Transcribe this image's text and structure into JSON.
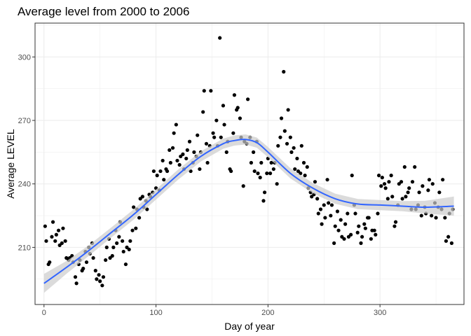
{
  "chart_data": {
    "type": "scatter",
    "title": "Average level from 2000 to 2006",
    "xlabel": "Day of year",
    "ylabel": "Average LEVEL",
    "xlim": [
      -8,
      375
    ],
    "ylim": [
      183,
      316
    ],
    "xticks": [
      0,
      100,
      200,
      300
    ],
    "yticks": [
      210,
      240,
      270,
      300
    ],
    "grid": true,
    "colors": {
      "points": "#000000",
      "smooth_line": "#3366ff",
      "band": "#cccccc",
      "grid": "#ebebeb",
      "panel_border": "#333333"
    },
    "points": [
      [
        1,
        220
      ],
      [
        2,
        213
      ],
      [
        4,
        202
      ],
      [
        5,
        203
      ],
      [
        7,
        215
      ],
      [
        8,
        222
      ],
      [
        10,
        213
      ],
      [
        11,
        216
      ],
      [
        13,
        218
      ],
      [
        14,
        211
      ],
      [
        16,
        212
      ],
      [
        17,
        219
      ],
      [
        19,
        213
      ],
      [
        20,
        205
      ],
      [
        22,
        204
      ],
      [
        23,
        205
      ],
      [
        25,
        206
      ],
      [
        26,
        203
      ],
      [
        28,
        196
      ],
      [
        29,
        193
      ],
      [
        31,
        202
      ],
      [
        32,
        204
      ],
      [
        34,
        199
      ],
      [
        35,
        200
      ],
      [
        37,
        208
      ],
      [
        38,
        203
      ],
      [
        40,
        210
      ],
      [
        41,
        207
      ],
      [
        43,
        212
      ],
      [
        44,
        205
      ],
      [
        46,
        199
      ],
      [
        47,
        195
      ],
      [
        49,
        197
      ],
      [
        50,
        194
      ],
      [
        52,
        192
      ],
      [
        53,
        196
      ],
      [
        55,
        204
      ],
      [
        56,
        210
      ],
      [
        58,
        214
      ],
      [
        59,
        205
      ],
      [
        61,
        206
      ],
      [
        62,
        210
      ],
      [
        64,
        218
      ],
      [
        65,
        212
      ],
      [
        67,
        215
      ],
      [
        68,
        222
      ],
      [
        70,
        213
      ],
      [
        71,
        208
      ],
      [
        73,
        202
      ],
      [
        74,
        210
      ],
      [
        76,
        209
      ],
      [
        77,
        213
      ],
      [
        79,
        218
      ],
      [
        80,
        229
      ],
      [
        82,
        219
      ],
      [
        83,
        228
      ],
      [
        85,
        224
      ],
      [
        86,
        233
      ],
      [
        88,
        234
      ],
      [
        89,
        229
      ],
      [
        91,
        232
      ],
      [
        92,
        228
      ],
      [
        94,
        235
      ],
      [
        95,
        234
      ],
      [
        97,
        236
      ],
      [
        98,
        246
      ],
      [
        100,
        238
      ],
      [
        101,
        244
      ],
      [
        103,
        237
      ],
      [
        104,
        246
      ],
      [
        106,
        251
      ],
      [
        107,
        242
      ],
      [
        109,
        247
      ],
      [
        110,
        246
      ],
      [
        112,
        256
      ],
      [
        113,
        250
      ],
      [
        115,
        257
      ],
      [
        116,
        264
      ],
      [
        118,
        268
      ],
      [
        119,
        251
      ],
      [
        121,
        249
      ],
      [
        122,
        253
      ],
      [
        124,
        254
      ],
      [
        125,
        247
      ],
      [
        127,
        252
      ],
      [
        128,
        256
      ],
      [
        130,
        260
      ],
      [
        131,
        246
      ],
      [
        133,
        250
      ],
      [
        134,
        255
      ],
      [
        136,
        253
      ],
      [
        137,
        263
      ],
      [
        139,
        247
      ],
      [
        140,
        255
      ],
      [
        142,
        274
      ],
      [
        143,
        284
      ],
      [
        145,
        259
      ],
      [
        146,
        250
      ],
      [
        148,
        258
      ],
      [
        149,
        284
      ],
      [
        151,
        264
      ],
      [
        152,
        262
      ],
      [
        154,
        270
      ],
      [
        155,
        258
      ],
      [
        157,
        309
      ],
      [
        158,
        262
      ],
      [
        160,
        277
      ],
      [
        161,
        268
      ],
      [
        163,
        255
      ],
      [
        164,
        260
      ],
      [
        166,
        247
      ],
      [
        167,
        246
      ],
      [
        169,
        264
      ],
      [
        170,
        282
      ],
      [
        172,
        275
      ],
      [
        173,
        276
      ],
      [
        175,
        271
      ],
      [
        176,
        262
      ],
      [
        178,
        239
      ],
      [
        179,
        260
      ],
      [
        181,
        259
      ],
      [
        182,
        280
      ],
      [
        184,
        262
      ],
      [
        185,
        250
      ],
      [
        187,
        255
      ],
      [
        188,
        246
      ],
      [
        190,
        260
      ],
      [
        191,
        245
      ],
      [
        193,
        243
      ],
      [
        194,
        250
      ],
      [
        196,
        232
      ],
      [
        197,
        236
      ],
      [
        199,
        245
      ],
      [
        200,
        252
      ],
      [
        202,
        245
      ],
      [
        203,
        250
      ],
      [
        205,
        247
      ],
      [
        206,
        250
      ],
      [
        208,
        240
      ],
      [
        209,
        258
      ],
      [
        211,
        262
      ],
      [
        212,
        271
      ],
      [
        214,
        293
      ],
      [
        215,
        265
      ],
      [
        217,
        259
      ],
      [
        218,
        275
      ],
      [
        220,
        262
      ],
      [
        221,
        255
      ],
      [
        223,
        257
      ],
      [
        224,
        247
      ],
      [
        226,
        252
      ],
      [
        227,
        246
      ],
      [
        229,
        245
      ],
      [
        230,
        258
      ],
      [
        232,
        250
      ],
      [
        233,
        244
      ],
      [
        235,
        248
      ],
      [
        236,
        238
      ],
      [
        238,
        236
      ],
      [
        239,
        234
      ],
      [
        241,
        235
      ],
      [
        242,
        241
      ],
      [
        244,
        233
      ],
      [
        245,
        226
      ],
      [
        247,
        228
      ],
      [
        248,
        221
      ],
      [
        250,
        230
      ],
      [
        251,
        224
      ],
      [
        253,
        242
      ],
      [
        254,
        231
      ],
      [
        256,
        225
      ],
      [
        257,
        230
      ],
      [
        259,
        212
      ],
      [
        260,
        220
      ],
      [
        262,
        227
      ],
      [
        263,
        218
      ],
      [
        265,
        223
      ],
      [
        266,
        215
      ],
      [
        268,
        214
      ],
      [
        269,
        221
      ],
      [
        271,
        226
      ],
      [
        272,
        215
      ],
      [
        274,
        216
      ],
      [
        275,
        244
      ],
      [
        277,
        230
      ],
      [
        278,
        226
      ],
      [
        280,
        217
      ],
      [
        281,
        220
      ],
      [
        283,
        212
      ],
      [
        284,
        215
      ],
      [
        286,
        221
      ],
      [
        287,
        219
      ],
      [
        289,
        224
      ],
      [
        290,
        224
      ],
      [
        292,
        214
      ],
      [
        293,
        218
      ],
      [
        295,
        218
      ],
      [
        296,
        216
      ],
      [
        298,
        226
      ],
      [
        299,
        244
      ],
      [
        301,
        239
      ],
      [
        302,
        243
      ],
      [
        304,
        240
      ],
      [
        305,
        238
      ],
      [
        307,
        233
      ],
      [
        308,
        241
      ],
      [
        310,
        244
      ],
      [
        311,
        234
      ],
      [
        313,
        220
      ],
      [
        314,
        222
      ],
      [
        316,
        230
      ],
      [
        317,
        240
      ],
      [
        319,
        241
      ],
      [
        320,
        233
      ],
      [
        322,
        248
      ],
      [
        323,
        234
      ],
      [
        325,
        236
      ],
      [
        326,
        238
      ],
      [
        328,
        228
      ],
      [
        329,
        241
      ],
      [
        331,
        248
      ],
      [
        332,
        228
      ],
      [
        334,
        230
      ],
      [
        335,
        236
      ],
      [
        337,
        225
      ],
      [
        338,
        239
      ],
      [
        340,
        229
      ],
      [
        341,
        226
      ],
      [
        343,
        237
      ],
      [
        344,
        242
      ],
      [
        346,
        225
      ],
      [
        347,
        240
      ],
      [
        349,
        231
      ],
      [
        350,
        224
      ],
      [
        352,
        229
      ],
      [
        353,
        236
      ],
      [
        355,
        228
      ],
      [
        356,
        242
      ],
      [
        358,
        224
      ],
      [
        359,
        213
      ],
      [
        361,
        215
      ],
      [
        362,
        226
      ],
      [
        364,
        212
      ],
      [
        365,
        228
      ]
    ],
    "smooth": {
      "x": [
        0,
        20,
        40,
        60,
        80,
        100,
        120,
        140,
        160,
        170,
        180,
        190,
        200,
        220,
        240,
        260,
        280,
        300,
        320,
        340,
        366
      ],
      "y": [
        193,
        200.5,
        208.5,
        217,
        225.5,
        235,
        244.5,
        253,
        259,
        260.5,
        261,
        259.5,
        255,
        245,
        238,
        233,
        230.5,
        230,
        229.5,
        229,
        229.5
      ],
      "band_half_width": [
        4.5,
        3,
        2.5,
        2.4,
        2.4,
        2.4,
        2.4,
        2.4,
        2.4,
        2.4,
        2.4,
        2.4,
        2.4,
        2.4,
        2.4,
        2.4,
        2.4,
        2.4,
        2.4,
        3,
        4.5
      ]
    }
  }
}
